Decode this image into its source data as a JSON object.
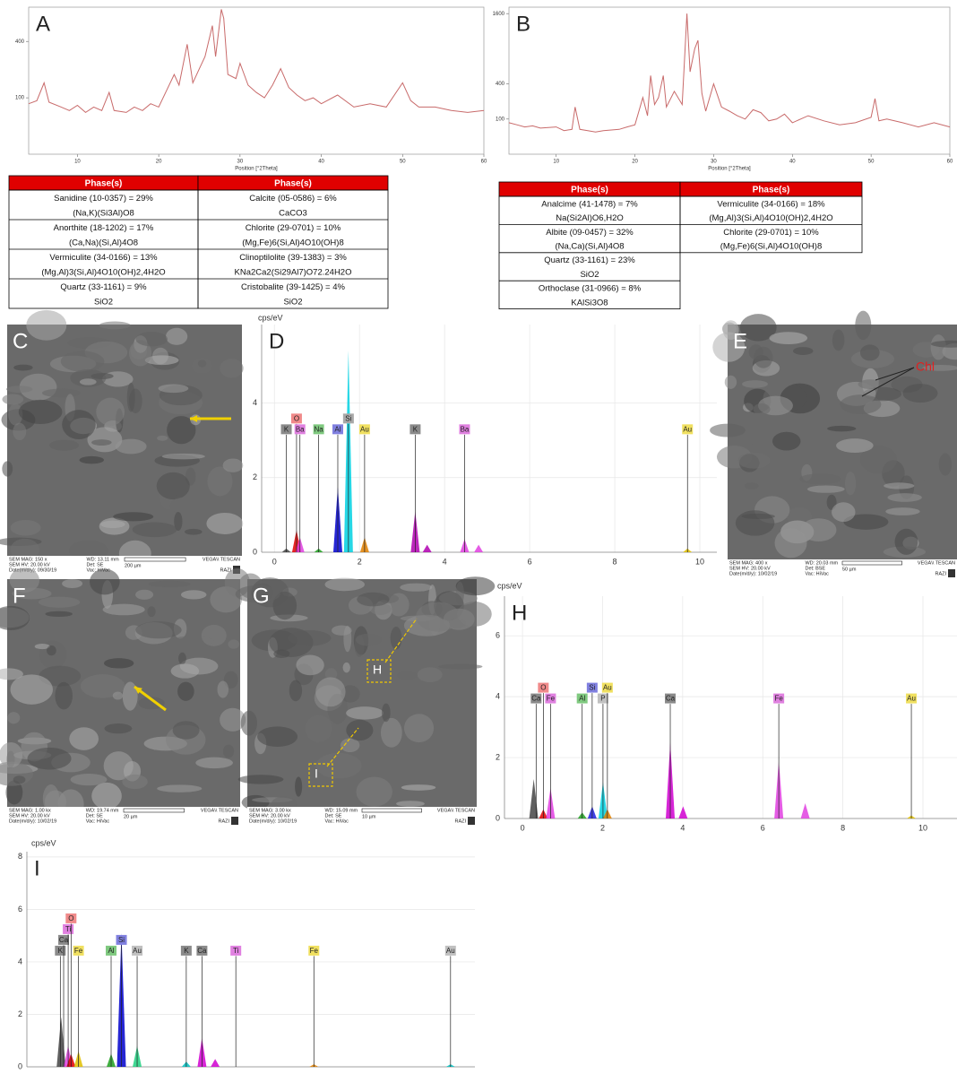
{
  "chart_data": [
    {
      "type": "line",
      "title": "A",
      "x_label": "Position [°2Theta]",
      "y_scale": "sqrt",
      "color": "#c86a6a",
      "xlim": [
        4,
        60
      ],
      "ylim": [
        0,
        680
      ],
      "xticks": [
        10,
        20,
        30,
        40,
        50,
        60
      ],
      "yticks": [
        100,
        400
      ],
      "x": [
        4,
        5,
        5.9,
        6.5,
        8,
        9,
        10,
        11,
        12,
        13,
        13.9,
        14.5,
        16,
        17,
        18,
        19,
        20,
        21,
        21.9,
        22.5,
        23.5,
        24.2,
        25,
        25.7,
        26.6,
        27,
        27.7,
        28,
        28.5,
        29.5,
        30,
        31,
        32,
        33,
        34,
        35,
        36,
        37,
        38,
        39,
        40,
        42,
        44,
        46,
        48,
        50,
        51,
        52,
        54,
        56,
        58,
        60
      ],
      "values": [
        80,
        90,
        160,
        85,
        70,
        60,
        75,
        55,
        70,
        60,
        120,
        60,
        55,
        70,
        60,
        80,
        70,
        130,
        200,
        150,
        380,
        160,
        230,
        300,
        520,
        300,
        660,
        580,
        200,
        180,
        260,
        150,
        120,
        100,
        150,
        230,
        140,
        110,
        90,
        100,
        80,
        110,
        70,
        80,
        70,
        160,
        90,
        70,
        70,
        60,
        55,
        60
      ]
    },
    {
      "type": "line",
      "title": "B",
      "x_label": "Position [°2Theta]",
      "y_scale": "sqrt",
      "color": "#c86a6a",
      "xlim": [
        4,
        60
      ],
      "ylim": [
        0,
        1750
      ],
      "xticks": [
        10,
        20,
        30,
        40,
        50,
        60
      ],
      "yticks": [
        100,
        400,
        1600
      ],
      "x": [
        4,
        5,
        6,
        7,
        8,
        10,
        11,
        12,
        12.4,
        13,
        14,
        15,
        16,
        18,
        19,
        20,
        21,
        21.6,
        22,
        22.5,
        23,
        23.6,
        24,
        25,
        26,
        26.6,
        27,
        27.6,
        28,
        28.5,
        29,
        30,
        31,
        32,
        33,
        34,
        35,
        36,
        37,
        38,
        39,
        40,
        42,
        44,
        46,
        48,
        50,
        50.5,
        51,
        52,
        54,
        56,
        58,
        60
      ],
      "values": [
        80,
        70,
        60,
        65,
        55,
        60,
        45,
        50,
        180,
        50,
        45,
        40,
        45,
        50,
        60,
        70,
        260,
        120,
        500,
        200,
        260,
        500,
        180,
        320,
        200,
        1600,
        550,
        900,
        1050,
        300,
        150,
        400,
        180,
        150,
        120,
        100,
        160,
        140,
        90,
        100,
        130,
        80,
        120,
        90,
        70,
        80,
        110,
        250,
        90,
        100,
        80,
        60,
        80,
        60
      ]
    },
    {
      "type": "spectrum",
      "title": "D",
      "y_label": "cps/eV",
      "grid": true,
      "xlim": [
        -0.3,
        10.4
      ],
      "ylim": [
        0,
        6.1
      ],
      "xticks": [
        0,
        2,
        4,
        6,
        8,
        10
      ],
      "yticks": [
        0,
        2,
        4
      ],
      "elements": [
        {
          "label": "K",
          "x": 0.28,
          "color": "#8a8a8a"
        },
        {
          "label": "O",
          "x": 0.52,
          "color": "#f08a8a"
        },
        {
          "label": "Ba",
          "x": 0.6,
          "color": "#e080e0"
        },
        {
          "label": "Na",
          "x": 1.04,
          "color": "#7fc97f"
        },
        {
          "label": "Al",
          "x": 1.49,
          "color": "#8080e0"
        },
        {
          "label": "Si",
          "x": 1.74,
          "color": "#a8a8a8"
        },
        {
          "label": "Au",
          "x": 2.12,
          "color": "#f0e060"
        },
        {
          "label": "K",
          "x": 3.31,
          "color": "#8a8a8a"
        },
        {
          "label": "Ba",
          "x": 4.47,
          "color": "#e080e0"
        },
        {
          "label": "Au",
          "x": 9.71,
          "color": "#f0e060"
        }
      ],
      "peaks": [
        {
          "x": 0.28,
          "y": 0.1,
          "color": "#444444"
        },
        {
          "x": 0.52,
          "y": 0.6,
          "color": "#e00000"
        },
        {
          "x": 0.6,
          "y": 0.4,
          "color": "#e040e0"
        },
        {
          "x": 1.04,
          "y": 0.1,
          "color": "#20a020"
        },
        {
          "x": 1.49,
          "y": 1.75,
          "color": "#0000cc"
        },
        {
          "x": 1.74,
          "y": 5.4,
          "color": "#00d0e0"
        },
        {
          "x": 2.12,
          "y": 0.4,
          "color": "#e08000"
        },
        {
          "x": 3.31,
          "y": 1.1,
          "color": "#b000b0"
        },
        {
          "x": 3.59,
          "y": 0.2,
          "color": "#b000b0"
        },
        {
          "x": 4.47,
          "y": 0.35,
          "color": "#e040e0"
        },
        {
          "x": 4.8,
          "y": 0.2,
          "color": "#e040e0"
        },
        {
          "x": 9.71,
          "y": 0.1,
          "color": "#e0c000"
        }
      ]
    },
    {
      "type": "spectrum",
      "title": "H",
      "y_label": "cps/eV",
      "grid": true,
      "xlim": [
        -0.45,
        10.85
      ],
      "ylim": [
        0,
        7.3
      ],
      "xticks": [
        0,
        2,
        4,
        6,
        8,
        10
      ],
      "yticks": [
        0,
        2,
        4,
        6
      ],
      "elements": [
        {
          "label": "Ca",
          "x": 0.34,
          "color": "#8a8a8a"
        },
        {
          "label": "O",
          "x": 0.52,
          "color": "#f08a8a"
        },
        {
          "label": "Fe",
          "x": 0.7,
          "color": "#e080e0"
        },
        {
          "label": "Al",
          "x": 1.49,
          "color": "#7fc97f"
        },
        {
          "label": "Si",
          "x": 1.74,
          "color": "#8080e0"
        },
        {
          "label": "P",
          "x": 2.01,
          "color": "#c0c0c0"
        },
        {
          "label": "Au",
          "x": 2.12,
          "color": "#f0e060"
        },
        {
          "label": "Ca",
          "x": 3.69,
          "color": "#8a8a8a"
        },
        {
          "label": "Fe",
          "x": 6.4,
          "color": "#e080e0"
        },
        {
          "label": "Au",
          "x": 9.71,
          "color": "#f0e060"
        }
      ],
      "peaks": [
        {
          "x": 0.28,
          "y": 1.3,
          "color": "#444444"
        },
        {
          "x": 0.52,
          "y": 0.3,
          "color": "#e00000"
        },
        {
          "x": 0.7,
          "y": 1.0,
          "color": "#e040e0"
        },
        {
          "x": 1.49,
          "y": 0.2,
          "color": "#20a020"
        },
        {
          "x": 1.74,
          "y": 0.4,
          "color": "#2020e0"
        },
        {
          "x": 2.01,
          "y": 1.2,
          "color": "#00d0e0"
        },
        {
          "x": 2.12,
          "y": 0.3,
          "color": "#e08000"
        },
        {
          "x": 3.69,
          "y": 2.5,
          "color": "#d000d0"
        },
        {
          "x": 4.01,
          "y": 0.4,
          "color": "#d000d0"
        },
        {
          "x": 6.4,
          "y": 1.9,
          "color": "#e040e0"
        },
        {
          "x": 7.06,
          "y": 0.5,
          "color": "#e040e0"
        },
        {
          "x": 9.71,
          "y": 0.1,
          "color": "#e0c000"
        }
      ]
    },
    {
      "type": "spectrum",
      "title": "I",
      "y_label": "cps/eV",
      "grid": true,
      "xlim": [
        -0.55,
        10.3
      ],
      "ylim": [
        0,
        8.2
      ],
      "yticks": [
        0,
        2,
        4,
        6,
        8
      ],
      "elements": [
        {
          "label": "K",
          "x": 0.26,
          "color": "#8a8a8a"
        },
        {
          "label": "Ca",
          "x": 0.34,
          "color": "#8a8a8a"
        },
        {
          "label": "Ti",
          "x": 0.45,
          "color": "#e080e0"
        },
        {
          "label": "O",
          "x": 0.52,
          "color": "#f08a8a"
        },
        {
          "label": "Fe",
          "x": 0.7,
          "color": "#f0e060"
        },
        {
          "label": "Al",
          "x": 1.49,
          "color": "#7fc97f"
        },
        {
          "label": "Si",
          "x": 1.74,
          "color": "#8080e0"
        },
        {
          "label": "Au",
          "x": 2.12,
          "color": "#c0c0c0"
        },
        {
          "label": "K",
          "x": 3.31,
          "color": "#8a8a8a"
        },
        {
          "label": "Ca",
          "x": 3.69,
          "color": "#8a8a8a"
        },
        {
          "label": "Ti",
          "x": 4.51,
          "color": "#e080e0"
        },
        {
          "label": "Fe",
          "x": 6.4,
          "color": "#f0e060"
        },
        {
          "label": "Au",
          "x": 9.71,
          "color": "#c0c0c0"
        }
      ],
      "peaks": [
        {
          "x": 0.28,
          "y": 1.9,
          "color": "#444444"
        },
        {
          "x": 0.45,
          "y": 0.8,
          "color": "#e040e0"
        },
        {
          "x": 0.52,
          "y": 0.5,
          "color": "#e00000"
        },
        {
          "x": 0.7,
          "y": 0.6,
          "color": "#e0c000"
        },
        {
          "x": 1.49,
          "y": 0.5,
          "color": "#20a020"
        },
        {
          "x": 1.74,
          "y": 5.1,
          "color": "#0000cc"
        },
        {
          "x": 2.12,
          "y": 0.8,
          "color": "#20d080"
        },
        {
          "x": 3.31,
          "y": 0.2,
          "color": "#00c0c0"
        },
        {
          "x": 3.69,
          "y": 1.1,
          "color": "#d000d0"
        },
        {
          "x": 4.01,
          "y": 0.3,
          "color": "#d000d0"
        },
        {
          "x": 6.4,
          "y": 0.1,
          "color": "#e08000"
        },
        {
          "x": 9.71,
          "y": 0.1,
          "color": "#00c0c0"
        }
      ]
    }
  ],
  "tables": [
    {
      "header": [
        "Phase(s)",
        "Phase(s)"
      ],
      "columns": [
        [
          "Sanidine   (10-0357) = 29%",
          "(Na,K)(Si3Al)O8",
          "Anorthite   (18-1202) = 17%",
          "(Ca,Na)(Si,Al)4O8",
          "Vermiculite   (34-0166) = 13%",
          "(Mg,Al)3(Si,Al)4O10(OH)2,4H2O",
          "Quartz   (33-1161) = 9%",
          "SiO2"
        ],
        [
          "Calcite   (05-0586) = 6%",
          "CaCO3",
          "Chlorite   (29-0701) = 10%",
          "(Mg,Fe)6(Si,Al)4O10(OH)8",
          "Clinoptilolite   (39-1383) = 3%",
          "KNa2Ca2(Si29Al7)O72.24H2O",
          "Cristobalite   (39-1425) = 4%",
          "SiO2"
        ]
      ]
    },
    {
      "header": [
        "Phase(s)",
        "Phase(s)"
      ],
      "columns": [
        [
          "Analcime   (41-1478) = 7%",
          "Na(Si2Al)O6,H2O",
          "Albite   (09-0457) = 32%",
          "(Na,Ca)(Si,Al)4O8",
          "Quartz   (33-1161) = 23%",
          "SiO2",
          "Orthoclase   (31-0966) = 8%",
          "KAlSi3O8"
        ],
        [
          "Vermiculite   (34-0166) = 18%",
          "(Mg,Al)3(Si,Al)4O10(OH)2,4H2O",
          "Chlorite   (29-0701) = 10%",
          "(Mg,Fe)6(Si,Al)4O10(OH)8"
        ]
      ]
    }
  ],
  "images": [
    {
      "letter": "C",
      "info": [
        [
          "SEM MAG: 150 x",
          "SEM HV: 20.00 kV",
          "Date(m/d/y): 09/30/19"
        ],
        [
          "WD: 13.11 mm",
          "Det: SE",
          "Vac: HiVac"
        ]
      ],
      "scale": "200 µm",
      "brand": "VEGA\\\\ TESCAN",
      "lab": "RAZI"
    },
    {
      "letter": "E",
      "info": [
        [
          "SEM MAG: 400 x",
          "SEM HV: 20.00 kV",
          "Date(m/d/y): 10/02/19"
        ],
        [
          "WD: 20.03 mm",
          "Det: BSE",
          "Vac: HiVac"
        ]
      ],
      "scale": "50 µm",
      "brand": "VEGA\\\\ TESCAN",
      "lab": "RAZI",
      "label": "Chl"
    },
    {
      "letter": "F",
      "info": [
        [
          "SEM MAG: 1.00 kx",
          "SEM HV: 20.00 kV",
          "Date(m/d/y): 10/02/19"
        ],
        [
          "WD: 19.74 mm",
          "Det: SE",
          "Vac: HiVac"
        ]
      ],
      "scale": "20 µm",
      "brand": "VEGA\\\\ TESCAN",
      "lab": "RAZI"
    },
    {
      "letter": "G",
      "info": [
        [
          "SEM MAG: 3.00 kx",
          "SEM HV: 20.00 kV",
          "Date(m/d/y): 10/02/19"
        ],
        [
          "WD: 15.09 mm",
          "Det: SE",
          "Vac: HiVac"
        ]
      ],
      "scale": "10 µm",
      "brand": "VEGA\\\\ TESCAN",
      "lab": "RAZI",
      "boxes": [
        "H",
        "I"
      ]
    }
  ]
}
